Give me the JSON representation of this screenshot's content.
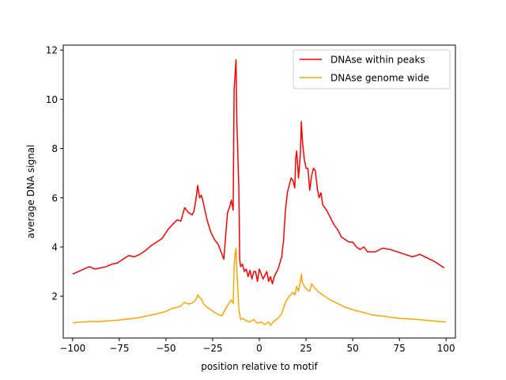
{
  "chart_data": {
    "type": "line",
    "title": "",
    "xlabel": "position relative to motif",
    "ylabel": "average DNA signal",
    "xlim": [
      -105,
      105
    ],
    "ylim": [
      0.3,
      12.2
    ],
    "xticks": [
      -100,
      -75,
      -50,
      -25,
      0,
      25,
      50,
      75,
      100
    ],
    "yticks": [
      2,
      4,
      6,
      8,
      10,
      12
    ],
    "grid": false,
    "legend_position": "top-right",
    "series": [
      {
        "name": "DNAse within peaks",
        "color": "#ff0000",
        "points": [
          [
            -100,
            2.9
          ],
          [
            -97,
            3.0
          ],
          [
            -94,
            3.1
          ],
          [
            -91,
            3.2
          ],
          [
            -88,
            3.1
          ],
          [
            -85,
            3.15
          ],
          [
            -82,
            3.2
          ],
          [
            -79,
            3.3
          ],
          [
            -76,
            3.35
          ],
          [
            -73,
            3.5
          ],
          [
            -70,
            3.65
          ],
          [
            -67,
            3.6
          ],
          [
            -64,
            3.7
          ],
          [
            -61,
            3.85
          ],
          [
            -58,
            4.05
          ],
          [
            -55,
            4.2
          ],
          [
            -52,
            4.35
          ],
          [
            -49,
            4.7
          ],
          [
            -46,
            4.95
          ],
          [
            -44,
            5.1
          ],
          [
            -42,
            5.05
          ],
          [
            -40,
            5.6
          ],
          [
            -38,
            5.4
          ],
          [
            -36,
            5.3
          ],
          [
            -35,
            5.45
          ],
          [
            -34,
            5.9
          ],
          [
            -33,
            6.5
          ],
          [
            -32,
            6.0
          ],
          [
            -31,
            6.1
          ],
          [
            -30,
            5.8
          ],
          [
            -28,
            5.1
          ],
          [
            -26,
            4.6
          ],
          [
            -24,
            4.3
          ],
          [
            -22,
            4.1
          ],
          [
            -20,
            3.7
          ],
          [
            -19,
            3.5
          ],
          [
            -18,
            4.5
          ],
          [
            -17,
            5.4
          ],
          [
            -16,
            5.6
          ],
          [
            -15,
            5.9
          ],
          [
            -14,
            5.5
          ],
          [
            -13.5,
            10.4
          ],
          [
            -13,
            11.0
          ],
          [
            -12.5,
            11.6
          ],
          [
            -12,
            9.0
          ],
          [
            -11,
            6.5
          ],
          [
            -10.5,
            3.5
          ],
          [
            -10,
            3.2
          ],
          [
            -9,
            3.3
          ],
          [
            -8,
            3.0
          ],
          [
            -7,
            3.1
          ],
          [
            -6,
            2.8
          ],
          [
            -5,
            3.05
          ],
          [
            -4,
            2.7
          ],
          [
            -3,
            3.0
          ],
          [
            -2,
            3.0
          ],
          [
            -1,
            2.6
          ],
          [
            0,
            3.1
          ],
          [
            2,
            2.7
          ],
          [
            4,
            3.0
          ],
          [
            5,
            2.6
          ],
          [
            6,
            2.8
          ],
          [
            7,
            2.5
          ],
          [
            8,
            2.8
          ],
          [
            10,
            3.1
          ],
          [
            12,
            3.6
          ],
          [
            13,
            4.3
          ],
          [
            14,
            5.5
          ],
          [
            15,
            6.2
          ],
          [
            16,
            6.5
          ],
          [
            17,
            6.8
          ],
          [
            18,
            6.7
          ],
          [
            19,
            6.4
          ],
          [
            19.5,
            7.6
          ],
          [
            20,
            7.9
          ],
          [
            21,
            6.8
          ],
          [
            22,
            7.8
          ],
          [
            22.5,
            9.1
          ],
          [
            23,
            8.4
          ],
          [
            24,
            7.6
          ],
          [
            25,
            7.2
          ],
          [
            26,
            7.2
          ],
          [
            27,
            6.3
          ],
          [
            28,
            6.9
          ],
          [
            29,
            7.2
          ],
          [
            30,
            7.1
          ],
          [
            31,
            6.4
          ],
          [
            32,
            6.0
          ],
          [
            33,
            6.2
          ],
          [
            34,
            5.7
          ],
          [
            36,
            5.5
          ],
          [
            38,
            5.2
          ],
          [
            40,
            4.9
          ],
          [
            42,
            4.7
          ],
          [
            44,
            4.4
          ],
          [
            46,
            4.3
          ],
          [
            48,
            4.2
          ],
          [
            50,
            4.2
          ],
          [
            52,
            4.0
          ],
          [
            54,
            3.9
          ],
          [
            56,
            4.0
          ],
          [
            58,
            3.8
          ],
          [
            62,
            3.8
          ],
          [
            66,
            3.95
          ],
          [
            70,
            3.9
          ],
          [
            74,
            3.8
          ],
          [
            78,
            3.7
          ],
          [
            82,
            3.6
          ],
          [
            86,
            3.7
          ],
          [
            90,
            3.55
          ],
          [
            94,
            3.4
          ],
          [
            97,
            3.25
          ],
          [
            99,
            3.15
          ]
        ]
      },
      {
        "name": "DNAse genome wide",
        "color": "#ffa500",
        "points": [
          [
            -100,
            0.92
          ],
          [
            -95,
            0.95
          ],
          [
            -90,
            0.97
          ],
          [
            -85,
            0.97
          ],
          [
            -80,
            1.0
          ],
          [
            -75,
            1.03
          ],
          [
            -70,
            1.08
          ],
          [
            -65,
            1.12
          ],
          [
            -60,
            1.2
          ],
          [
            -55,
            1.28
          ],
          [
            -50,
            1.38
          ],
          [
            -47,
            1.5
          ],
          [
            -44,
            1.55
          ],
          [
            -42,
            1.6
          ],
          [
            -40,
            1.75
          ],
          [
            -38,
            1.68
          ],
          [
            -36,
            1.72
          ],
          [
            -34,
            1.85
          ],
          [
            -33,
            2.05
          ],
          [
            -32,
            1.95
          ],
          [
            -31,
            1.88
          ],
          [
            -30,
            1.7
          ],
          [
            -28,
            1.55
          ],
          [
            -26,
            1.45
          ],
          [
            -24,
            1.35
          ],
          [
            -22,
            1.25
          ],
          [
            -20,
            1.2
          ],
          [
            -18,
            1.5
          ],
          [
            -16,
            1.75
          ],
          [
            -15,
            1.85
          ],
          [
            -14,
            1.7
          ],
          [
            -13.5,
            3.2
          ],
          [
            -13,
            3.7
          ],
          [
            -12.5,
            3.95
          ],
          [
            -12,
            3.0
          ],
          [
            -11,
            1.5
          ],
          [
            -10,
            1.05
          ],
          [
            -9,
            1.1
          ],
          [
            -7,
            1.0
          ],
          [
            -5,
            0.95
          ],
          [
            -3,
            1.05
          ],
          [
            -1,
            0.9
          ],
          [
            1,
            0.95
          ],
          [
            3,
            0.85
          ],
          [
            5,
            0.95
          ],
          [
            6,
            0.82
          ],
          [
            8,
            1.0
          ],
          [
            10,
            1.1
          ],
          [
            12,
            1.3
          ],
          [
            14,
            1.75
          ],
          [
            16,
            2.0
          ],
          [
            18,
            2.15
          ],
          [
            19,
            2.05
          ],
          [
            20,
            2.4
          ],
          [
            21,
            2.2
          ],
          [
            22,
            2.6
          ],
          [
            22.5,
            2.9
          ],
          [
            23,
            2.55
          ],
          [
            25,
            2.3
          ],
          [
            27,
            2.2
          ],
          [
            28,
            2.5
          ],
          [
            30,
            2.3
          ],
          [
            32,
            2.15
          ],
          [
            35,
            2.0
          ],
          [
            38,
            1.85
          ],
          [
            42,
            1.7
          ],
          [
            46,
            1.55
          ],
          [
            50,
            1.45
          ],
          [
            55,
            1.35
          ],
          [
            60,
            1.25
          ],
          [
            65,
            1.2
          ],
          [
            70,
            1.15
          ],
          [
            75,
            1.1
          ],
          [
            80,
            1.08
          ],
          [
            85,
            1.05
          ],
          [
            90,
            1.02
          ],
          [
            95,
            0.98
          ],
          [
            100,
            0.95
          ]
        ]
      }
    ]
  }
}
